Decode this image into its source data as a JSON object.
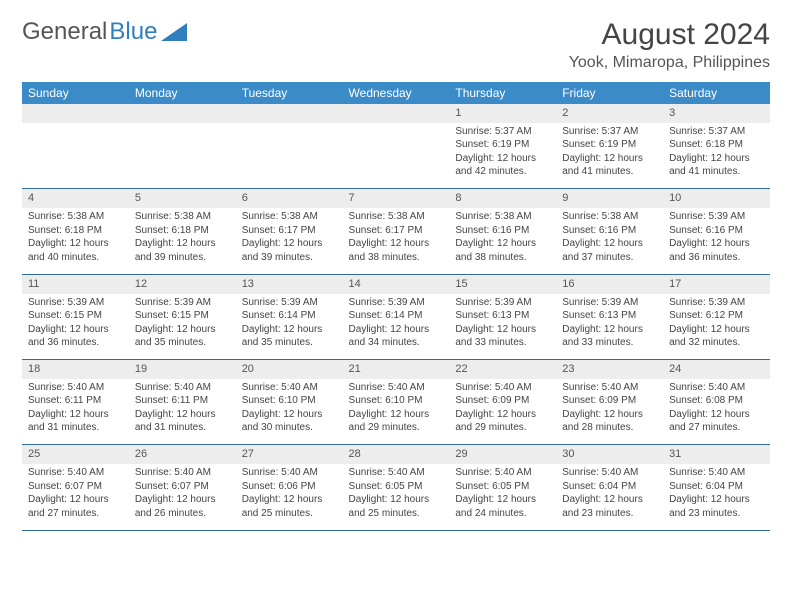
{
  "logo": {
    "text1": "General",
    "text2": "Blue"
  },
  "title": "August 2024",
  "location": "Yook, Mimaropa, Philippines",
  "weekdays": [
    "Sunday",
    "Monday",
    "Tuesday",
    "Wednesday",
    "Thursday",
    "Friday",
    "Saturday"
  ],
  "colors": {
    "header_bg": "#3b8bc8",
    "header_text": "#ffffff",
    "daynum_bg": "#ededed",
    "row_border": "#2f6fa0",
    "logo_blue": "#2f7fbf"
  },
  "weeks": [
    [
      null,
      null,
      null,
      null,
      {
        "n": "1",
        "rise": "5:37 AM",
        "set": "6:19 PM",
        "dl": "12 hours and 42 minutes."
      },
      {
        "n": "2",
        "rise": "5:37 AM",
        "set": "6:19 PM",
        "dl": "12 hours and 41 minutes."
      },
      {
        "n": "3",
        "rise": "5:37 AM",
        "set": "6:18 PM",
        "dl": "12 hours and 41 minutes."
      }
    ],
    [
      {
        "n": "4",
        "rise": "5:38 AM",
        "set": "6:18 PM",
        "dl": "12 hours and 40 minutes."
      },
      {
        "n": "5",
        "rise": "5:38 AM",
        "set": "6:18 PM",
        "dl": "12 hours and 39 minutes."
      },
      {
        "n": "6",
        "rise": "5:38 AM",
        "set": "6:17 PM",
        "dl": "12 hours and 39 minutes."
      },
      {
        "n": "7",
        "rise": "5:38 AM",
        "set": "6:17 PM",
        "dl": "12 hours and 38 minutes."
      },
      {
        "n": "8",
        "rise": "5:38 AM",
        "set": "6:16 PM",
        "dl": "12 hours and 38 minutes."
      },
      {
        "n": "9",
        "rise": "5:38 AM",
        "set": "6:16 PM",
        "dl": "12 hours and 37 minutes."
      },
      {
        "n": "10",
        "rise": "5:39 AM",
        "set": "6:16 PM",
        "dl": "12 hours and 36 minutes."
      }
    ],
    [
      {
        "n": "11",
        "rise": "5:39 AM",
        "set": "6:15 PM",
        "dl": "12 hours and 36 minutes."
      },
      {
        "n": "12",
        "rise": "5:39 AM",
        "set": "6:15 PM",
        "dl": "12 hours and 35 minutes."
      },
      {
        "n": "13",
        "rise": "5:39 AM",
        "set": "6:14 PM",
        "dl": "12 hours and 35 minutes."
      },
      {
        "n": "14",
        "rise": "5:39 AM",
        "set": "6:14 PM",
        "dl": "12 hours and 34 minutes."
      },
      {
        "n": "15",
        "rise": "5:39 AM",
        "set": "6:13 PM",
        "dl": "12 hours and 33 minutes."
      },
      {
        "n": "16",
        "rise": "5:39 AM",
        "set": "6:13 PM",
        "dl": "12 hours and 33 minutes."
      },
      {
        "n": "17",
        "rise": "5:39 AM",
        "set": "6:12 PM",
        "dl": "12 hours and 32 minutes."
      }
    ],
    [
      {
        "n": "18",
        "rise": "5:40 AM",
        "set": "6:11 PM",
        "dl": "12 hours and 31 minutes."
      },
      {
        "n": "19",
        "rise": "5:40 AM",
        "set": "6:11 PM",
        "dl": "12 hours and 31 minutes."
      },
      {
        "n": "20",
        "rise": "5:40 AM",
        "set": "6:10 PM",
        "dl": "12 hours and 30 minutes."
      },
      {
        "n": "21",
        "rise": "5:40 AM",
        "set": "6:10 PM",
        "dl": "12 hours and 29 minutes."
      },
      {
        "n": "22",
        "rise": "5:40 AM",
        "set": "6:09 PM",
        "dl": "12 hours and 29 minutes."
      },
      {
        "n": "23",
        "rise": "5:40 AM",
        "set": "6:09 PM",
        "dl": "12 hours and 28 minutes."
      },
      {
        "n": "24",
        "rise": "5:40 AM",
        "set": "6:08 PM",
        "dl": "12 hours and 27 minutes."
      }
    ],
    [
      {
        "n": "25",
        "rise": "5:40 AM",
        "set": "6:07 PM",
        "dl": "12 hours and 27 minutes."
      },
      {
        "n": "26",
        "rise": "5:40 AM",
        "set": "6:07 PM",
        "dl": "12 hours and 26 minutes."
      },
      {
        "n": "27",
        "rise": "5:40 AM",
        "set": "6:06 PM",
        "dl": "12 hours and 25 minutes."
      },
      {
        "n": "28",
        "rise": "5:40 AM",
        "set": "6:05 PM",
        "dl": "12 hours and 25 minutes."
      },
      {
        "n": "29",
        "rise": "5:40 AM",
        "set": "6:05 PM",
        "dl": "12 hours and 24 minutes."
      },
      {
        "n": "30",
        "rise": "5:40 AM",
        "set": "6:04 PM",
        "dl": "12 hours and 23 minutes."
      },
      {
        "n": "31",
        "rise": "5:40 AM",
        "set": "6:04 PM",
        "dl": "12 hours and 23 minutes."
      }
    ]
  ]
}
